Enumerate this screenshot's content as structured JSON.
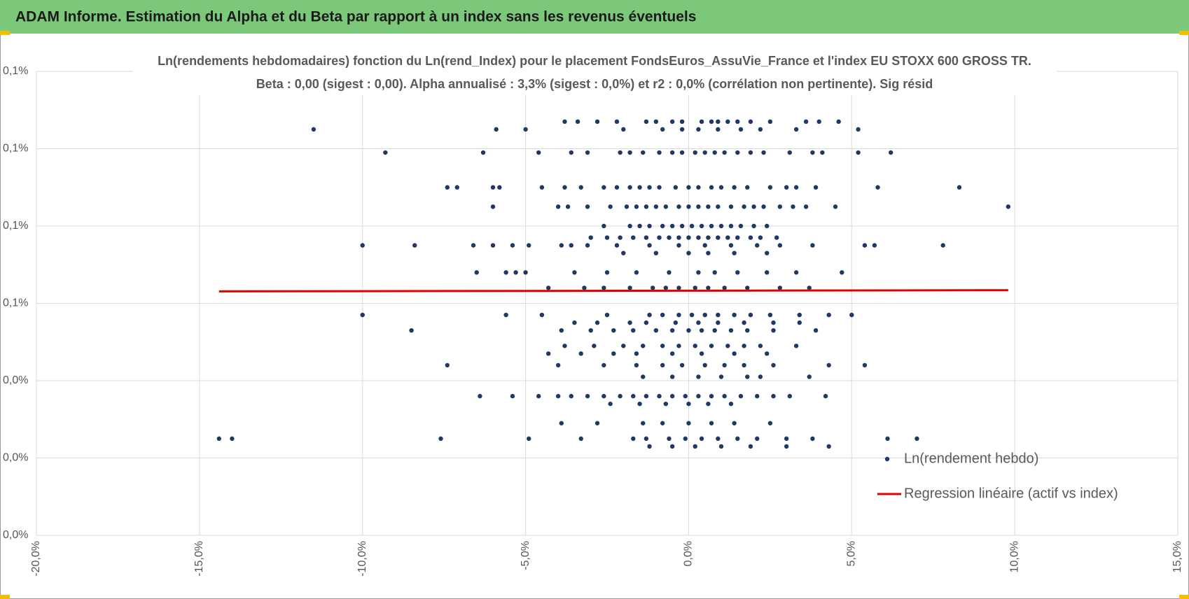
{
  "header": {
    "title": "ADAM Informe. Estimation du Alpha et du Beta par rapport à un index sans les revenus éventuels"
  },
  "chart_data": {
    "type": "scatter",
    "title": "Ln(rendements hebdomadaires) fonction du Ln(rend_Index) pour le placement FondsEuros_AssuVie_France et l'index EU STOXX 600 GROSS TR.",
    "subtitle": "Beta : 0,00 (sigest : 0,00). Alpha annualisé : 3,3% (sigest : 0,0%) et r2 : 0,0% (corrélation non pertinente). Sig résid",
    "xlim": [
      -20,
      15
    ],
    "xticks": [
      {
        "value": -20,
        "label": "-20,0%"
      },
      {
        "value": -15,
        "label": "-15,0%"
      },
      {
        "value": -10,
        "label": "-10,0%"
      },
      {
        "value": -5,
        "label": "-5,0%"
      },
      {
        "value": 0,
        "label": "0,0%"
      },
      {
        "value": 5,
        "label": "5,0%"
      },
      {
        "value": 10,
        "label": "10,0%"
      },
      {
        "value": 15,
        "label": "15,0%"
      }
    ],
    "ylim": [
      0,
      0.12
    ],
    "yticks": [
      {
        "value": 0,
        "label": "0,0%"
      },
      {
        "value": 0.02,
        "label": "0,0%"
      },
      {
        "value": 0.04,
        "label": "0,0%"
      },
      {
        "value": 0.06,
        "label": "0,1%"
      },
      {
        "value": 0.08,
        "label": "0,1%"
      },
      {
        "value": 0.1,
        "label": "0,1%"
      },
      {
        "value": 0.12,
        "label": "0,1%"
      }
    ],
    "grid": true,
    "legend": "bottom-right",
    "series": [
      {
        "name": "Ln(rendement hebdo)",
        "color": "#203864",
        "mode": "markers",
        "x": [
          -3.8,
          -3.4,
          -2.8,
          -2.2,
          -1.3,
          -1.0,
          -0.5,
          -0.2,
          0.4,
          0.7,
          0.9,
          1.2,
          1.5,
          1.9,
          2.5,
          3.6,
          4.0,
          4.6,
          -11.5,
          -5.9,
          -5.0,
          -2.0,
          -0.8,
          -0.2,
          0.3,
          0.9,
          1.6,
          2.2,
          3.3,
          5.2,
          -9.3,
          -6.3,
          -4.6,
          -3.6,
          -3.1,
          -2.1,
          -1.8,
          -1.4,
          -0.9,
          -0.5,
          -0.2,
          0.2,
          0.5,
          0.8,
          1.1,
          1.5,
          1.9,
          2.3,
          3.1,
          3.8,
          4.1,
          5.2,
          6.2,
          -7.4,
          -7.1,
          -6.0,
          -5.8,
          -4.5,
          -3.8,
          -3.3,
          -2.6,
          -2.2,
          -1.8,
          -1.5,
          -1.2,
          -0.9,
          -0.4,
          0.0,
          0.3,
          0.7,
          1.0,
          1.4,
          1.8,
          2.5,
          3.0,
          3.3,
          3.9,
          5.8,
          8.3,
          -6.0,
          -4.0,
          -3.7,
          -3.1,
          -2.4,
          -1.9,
          -1.6,
          -1.3,
          -1.0,
          -0.7,
          -0.3,
          0.0,
          0.3,
          0.6,
          0.9,
          1.3,
          1.7,
          2.0,
          2.3,
          2.8,
          3.2,
          3.6,
          4.5,
          9.8,
          -2.6,
          -1.8,
          -1.5,
          -1.2,
          -0.8,
          -0.5,
          -0.2,
          0.1,
          0.4,
          0.7,
          1.0,
          1.3,
          1.6,
          2.0,
          2.4,
          -3.0,
          -2.5,
          -2.1,
          -1.7,
          -1.3,
          -0.9,
          -0.6,
          -0.3,
          0.0,
          0.3,
          0.6,
          0.9,
          1.2,
          1.5,
          1.9,
          2.2,
          2.7,
          -10.0,
          -8.4,
          -6.6,
          -6.0,
          -5.4,
          -4.9,
          -3.9,
          -3.6,
          -3.1,
          -2.2,
          -1.2,
          -0.3,
          0.5,
          1.3,
          2.1,
          2.8,
          3.8,
          5.4,
          5.7,
          7.8,
          -2.0,
          -1.0,
          0.0,
          0.6,
          1.4,
          2.4,
          -6.5,
          -5.6,
          -5.3,
          -5.0,
          -3.5,
          -2.5,
          -1.6,
          -0.6,
          0.3,
          0.8,
          1.5,
          2.4,
          3.3,
          4.7,
          -4.3,
          -3.2,
          -2.6,
          -1.8,
          -1.1,
          -0.7,
          -0.3,
          0.2,
          0.6,
          1.1,
          1.8,
          2.8,
          3.7,
          -10.0,
          -5.6,
          -4.5,
          -2.5,
          -1.2,
          -0.8,
          -0.3,
          0.1,
          0.5,
          0.9,
          1.4,
          1.9,
          2.5,
          3.4,
          4.3,
          5.0,
          -3.5,
          -2.8,
          -1.8,
          -1.3,
          -0.4,
          0.3,
          0.9,
          1.7,
          2.6,
          3.4,
          -8.5,
          -3.9,
          -3.0,
          -2.3,
          -1.7,
          -1.0,
          -0.5,
          0.0,
          0.4,
          0.8,
          1.3,
          1.8,
          2.6,
          3.9,
          -3.8,
          -2.9,
          -2.0,
          -1.4,
          -0.8,
          -0.3,
          0.2,
          0.7,
          1.2,
          1.7,
          2.2,
          3.3,
          -4.3,
          -3.3,
          -2.3,
          -1.6,
          -0.5,
          0.4,
          1.4,
          2.4,
          -7.4,
          -4.0,
          -2.6,
          -1.6,
          -0.8,
          -0.2,
          0.5,
          1.1,
          1.7,
          2.6,
          4.3,
          5.4,
          -1.4,
          -0.5,
          0.3,
          1.0,
          1.8,
          2.2,
          3.7,
          -6.4,
          -5.4,
          -4.6,
          -4.0,
          -3.6,
          -3.1,
          -2.6,
          -2.1,
          -1.7,
          -1.3,
          -0.9,
          -0.5,
          -0.1,
          0.3,
          0.7,
          1.1,
          1.6,
          2.1,
          2.6,
          3.1,
          4.2,
          -2.4,
          -1.5,
          -0.7,
          0.0,
          0.6,
          1.3,
          -3.9,
          -2.8,
          -1.4,
          -0.8,
          0.0,
          0.7,
          1.4,
          2.5,
          -14.4,
          -14.0,
          -7.6,
          -4.9,
          -3.3,
          -1.7,
          -1.3,
          -0.6,
          -0.1,
          0.4,
          0.9,
          1.5,
          2.1,
          3.0,
          3.8,
          6.1,
          7.0,
          -1.2,
          -0.5,
          0.2,
          1.0,
          1.9,
          3.0,
          4.3
        ],
        "y": [
          0.107,
          0.107,
          0.107,
          0.107,
          0.107,
          0.107,
          0.107,
          0.107,
          0.107,
          0.107,
          0.107,
          0.107,
          0.107,
          0.107,
          0.107,
          0.107,
          0.107,
          0.107,
          0.105,
          0.105,
          0.105,
          0.105,
          0.105,
          0.105,
          0.105,
          0.105,
          0.105,
          0.105,
          0.105,
          0.105,
          0.099,
          0.099,
          0.099,
          0.099,
          0.099,
          0.099,
          0.099,
          0.099,
          0.099,
          0.099,
          0.099,
          0.099,
          0.099,
          0.099,
          0.099,
          0.099,
          0.099,
          0.099,
          0.099,
          0.099,
          0.099,
          0.099,
          0.099,
          0.09,
          0.09,
          0.09,
          0.09,
          0.09,
          0.09,
          0.09,
          0.09,
          0.09,
          0.09,
          0.09,
          0.09,
          0.09,
          0.09,
          0.09,
          0.09,
          0.09,
          0.09,
          0.09,
          0.09,
          0.09,
          0.09,
          0.09,
          0.09,
          0.09,
          0.09,
          0.085,
          0.085,
          0.085,
          0.085,
          0.085,
          0.085,
          0.085,
          0.085,
          0.085,
          0.085,
          0.085,
          0.085,
          0.085,
          0.085,
          0.085,
          0.085,
          0.085,
          0.085,
          0.085,
          0.085,
          0.085,
          0.085,
          0.085,
          0.085,
          0.08,
          0.08,
          0.08,
          0.08,
          0.08,
          0.08,
          0.08,
          0.08,
          0.08,
          0.08,
          0.08,
          0.08,
          0.08,
          0.08,
          0.08,
          0.077,
          0.077,
          0.077,
          0.077,
          0.077,
          0.077,
          0.077,
          0.077,
          0.077,
          0.077,
          0.077,
          0.077,
          0.077,
          0.077,
          0.077,
          0.077,
          0.077,
          0.075,
          0.075,
          0.075,
          0.075,
          0.075,
          0.075,
          0.075,
          0.075,
          0.075,
          0.075,
          0.075,
          0.075,
          0.075,
          0.075,
          0.075,
          0.075,
          0.075,
          0.075,
          0.075,
          0.075,
          0.073,
          0.073,
          0.073,
          0.073,
          0.073,
          0.073,
          0.068,
          0.068,
          0.068,
          0.068,
          0.068,
          0.068,
          0.068,
          0.068,
          0.068,
          0.068,
          0.068,
          0.068,
          0.068,
          0.068,
          0.064,
          0.064,
          0.064,
          0.064,
          0.064,
          0.064,
          0.064,
          0.064,
          0.064,
          0.064,
          0.064,
          0.064,
          0.064,
          0.057,
          0.057,
          0.057,
          0.057,
          0.057,
          0.057,
          0.057,
          0.057,
          0.057,
          0.057,
          0.057,
          0.057,
          0.057,
          0.057,
          0.057,
          0.057,
          0.055,
          0.055,
          0.055,
          0.055,
          0.055,
          0.055,
          0.055,
          0.055,
          0.055,
          0.055,
          0.053,
          0.053,
          0.053,
          0.053,
          0.053,
          0.053,
          0.053,
          0.053,
          0.053,
          0.053,
          0.053,
          0.053,
          0.053,
          0.053,
          0.049,
          0.049,
          0.049,
          0.049,
          0.049,
          0.049,
          0.049,
          0.049,
          0.049,
          0.049,
          0.049,
          0.049,
          0.047,
          0.047,
          0.047,
          0.047,
          0.047,
          0.047,
          0.047,
          0.047,
          0.044,
          0.044,
          0.044,
          0.044,
          0.044,
          0.044,
          0.044,
          0.044,
          0.044,
          0.044,
          0.044,
          0.044,
          0.041,
          0.041,
          0.041,
          0.041,
          0.041,
          0.041,
          0.041,
          0.036,
          0.036,
          0.036,
          0.036,
          0.036,
          0.036,
          0.036,
          0.036,
          0.036,
          0.036,
          0.036,
          0.036,
          0.036,
          0.036,
          0.036,
          0.036,
          0.036,
          0.036,
          0.036,
          0.036,
          0.036,
          0.034,
          0.034,
          0.034,
          0.034,
          0.034,
          0.034,
          0.029,
          0.029,
          0.029,
          0.029,
          0.029,
          0.029,
          0.029,
          0.029,
          0.025,
          0.025,
          0.025,
          0.025,
          0.025,
          0.025,
          0.025,
          0.025,
          0.025,
          0.025,
          0.025,
          0.025,
          0.025,
          0.025,
          0.025,
          0.025,
          0.025,
          0.023,
          0.023,
          0.023,
          0.023,
          0.023,
          0.023,
          0.023
        ]
      },
      {
        "name": "Regression linéaire (actif vs index)",
        "color": "#e00000",
        "mode": "line",
        "x": [
          -14.4,
          9.8
        ],
        "y": [
          0.0631,
          0.0634
        ]
      }
    ]
  }
}
